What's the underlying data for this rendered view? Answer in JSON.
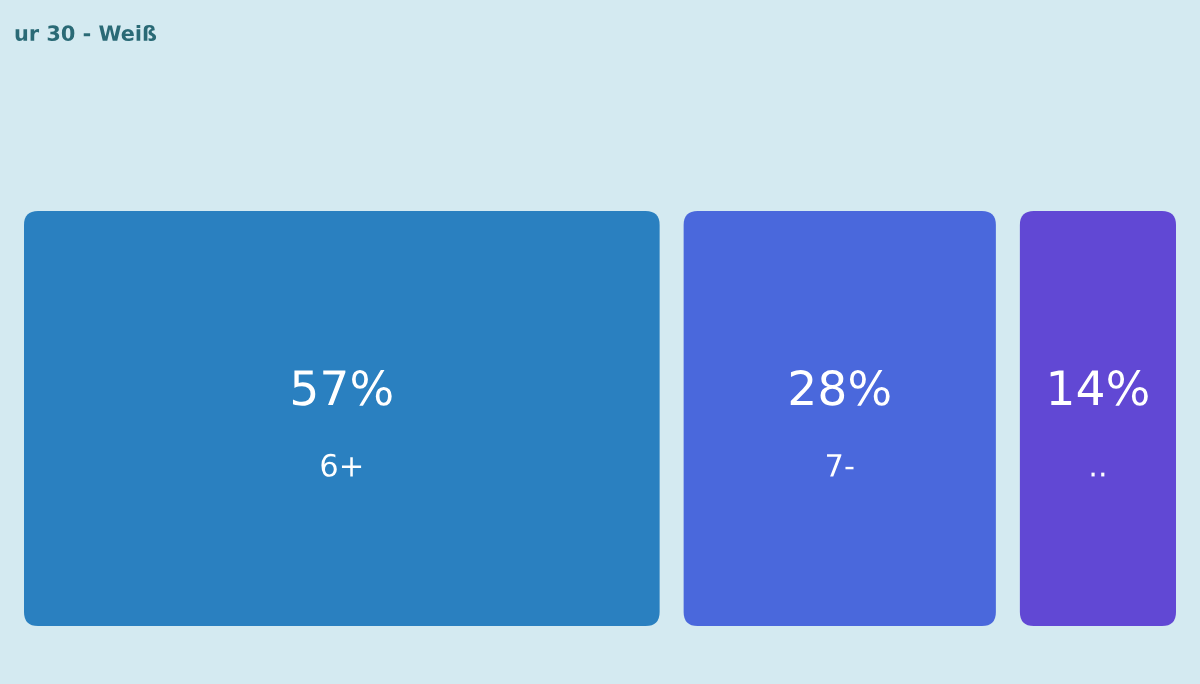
{
  "chart_data": {
    "type": "other",
    "title": "ur 30 - Weiß",
    "categories": [
      "6+",
      "7-",
      ".."
    ],
    "values": [
      57,
      28,
      14
    ],
    "value_labels": [
      "57%",
      "28%",
      "14%"
    ],
    "colors": [
      "#2a80c0",
      "#4a68dc",
      "#6148d4"
    ]
  }
}
